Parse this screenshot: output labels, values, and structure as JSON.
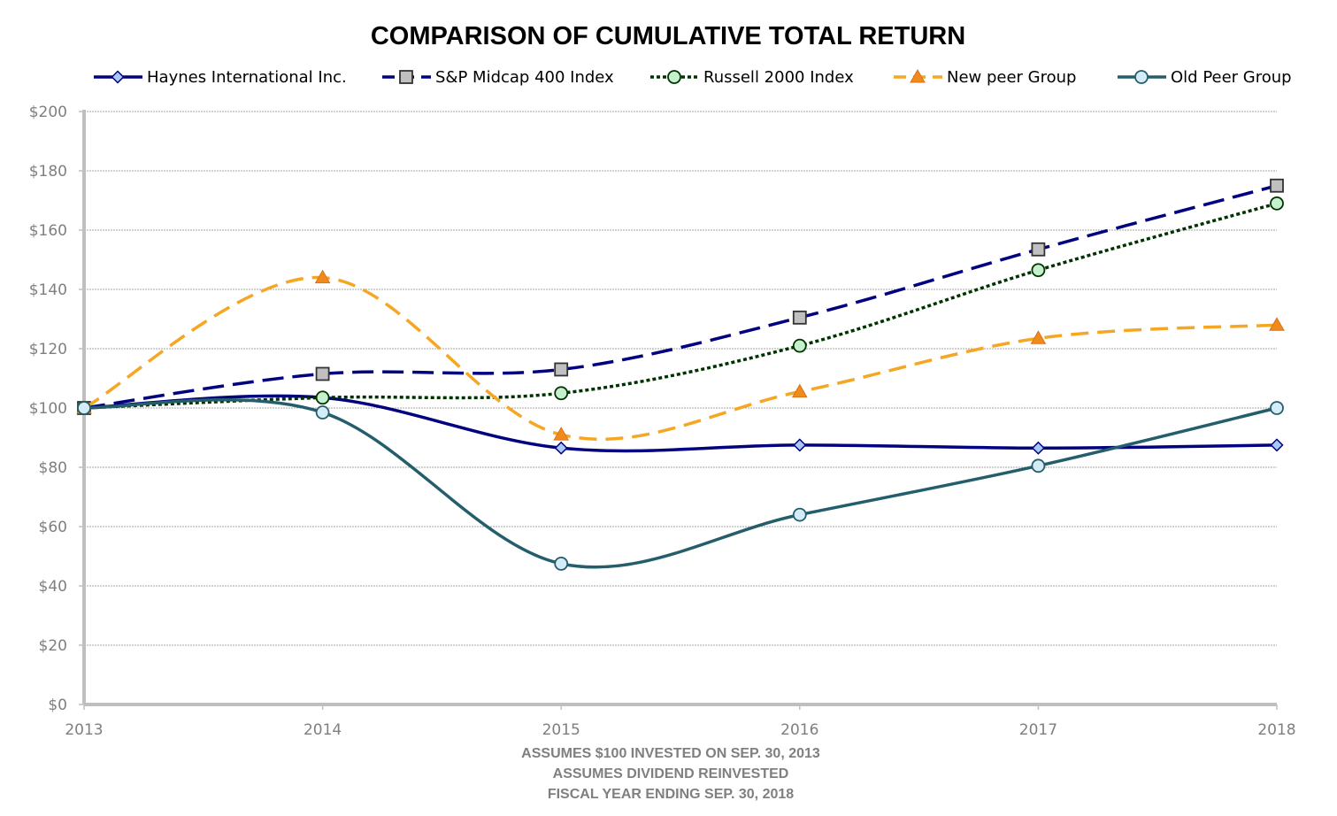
{
  "chart_data": {
    "type": "line",
    "title": "COMPARISON OF CUMULATIVE TOTAL RETURN",
    "x": [
      "2013",
      "2014",
      "2015",
      "2016",
      "2017",
      "2018"
    ],
    "y_ticks": [
      "$0",
      "$20",
      "$40",
      "$60",
      "$80",
      "$100",
      "$120",
      "$140",
      "$160",
      "$180",
      "$200"
    ],
    "ylim": [
      0,
      200
    ],
    "grid": "horizontal",
    "legend_position": "top",
    "footnotes": [
      "ASSUMES $100 INVESTED ON SEP. 30, 2013",
      "ASSUMES DIVIDEND REINVESTED",
      "FISCAL YEAR ENDING SEP. 30, 2018"
    ],
    "series": [
      {
        "name": "Haynes International Inc.",
        "values": [
          100,
          103.5,
          86.5,
          87.5,
          86.5,
          87.5
        ],
        "color": "#000080",
        "marker": "diamond",
        "marker_fill": "#a9c8f5",
        "dash": "solid"
      },
      {
        "name": "S&P Midcap 400 Index",
        "values": [
          100,
          111.5,
          113,
          130.5,
          153.5,
          175
        ],
        "color": "#000080",
        "marker": "square",
        "marker_fill": "#c0c0c0",
        "dash": "long-dash"
      },
      {
        "name": "Russell 2000 Index",
        "values": [
          100,
          103.5,
          105,
          121,
          146.5,
          169
        ],
        "color": "#003300",
        "marker": "circle",
        "marker_fill": "#c6efce",
        "dash": "dotted"
      },
      {
        "name": "New peer Group",
        "values": [
          100,
          144,
          91,
          105.5,
          123.5,
          128
        ],
        "color": "#f5a623",
        "marker": "triangle",
        "marker_fill": "#f08a1c",
        "dash": "dash"
      },
      {
        "name": "Old Peer Group",
        "values": [
          100,
          98.5,
          47.5,
          64,
          80.5,
          100
        ],
        "color": "#255e6b",
        "marker": "circle",
        "marker_fill": "#d4ecf7",
        "dash": "solid"
      }
    ]
  }
}
